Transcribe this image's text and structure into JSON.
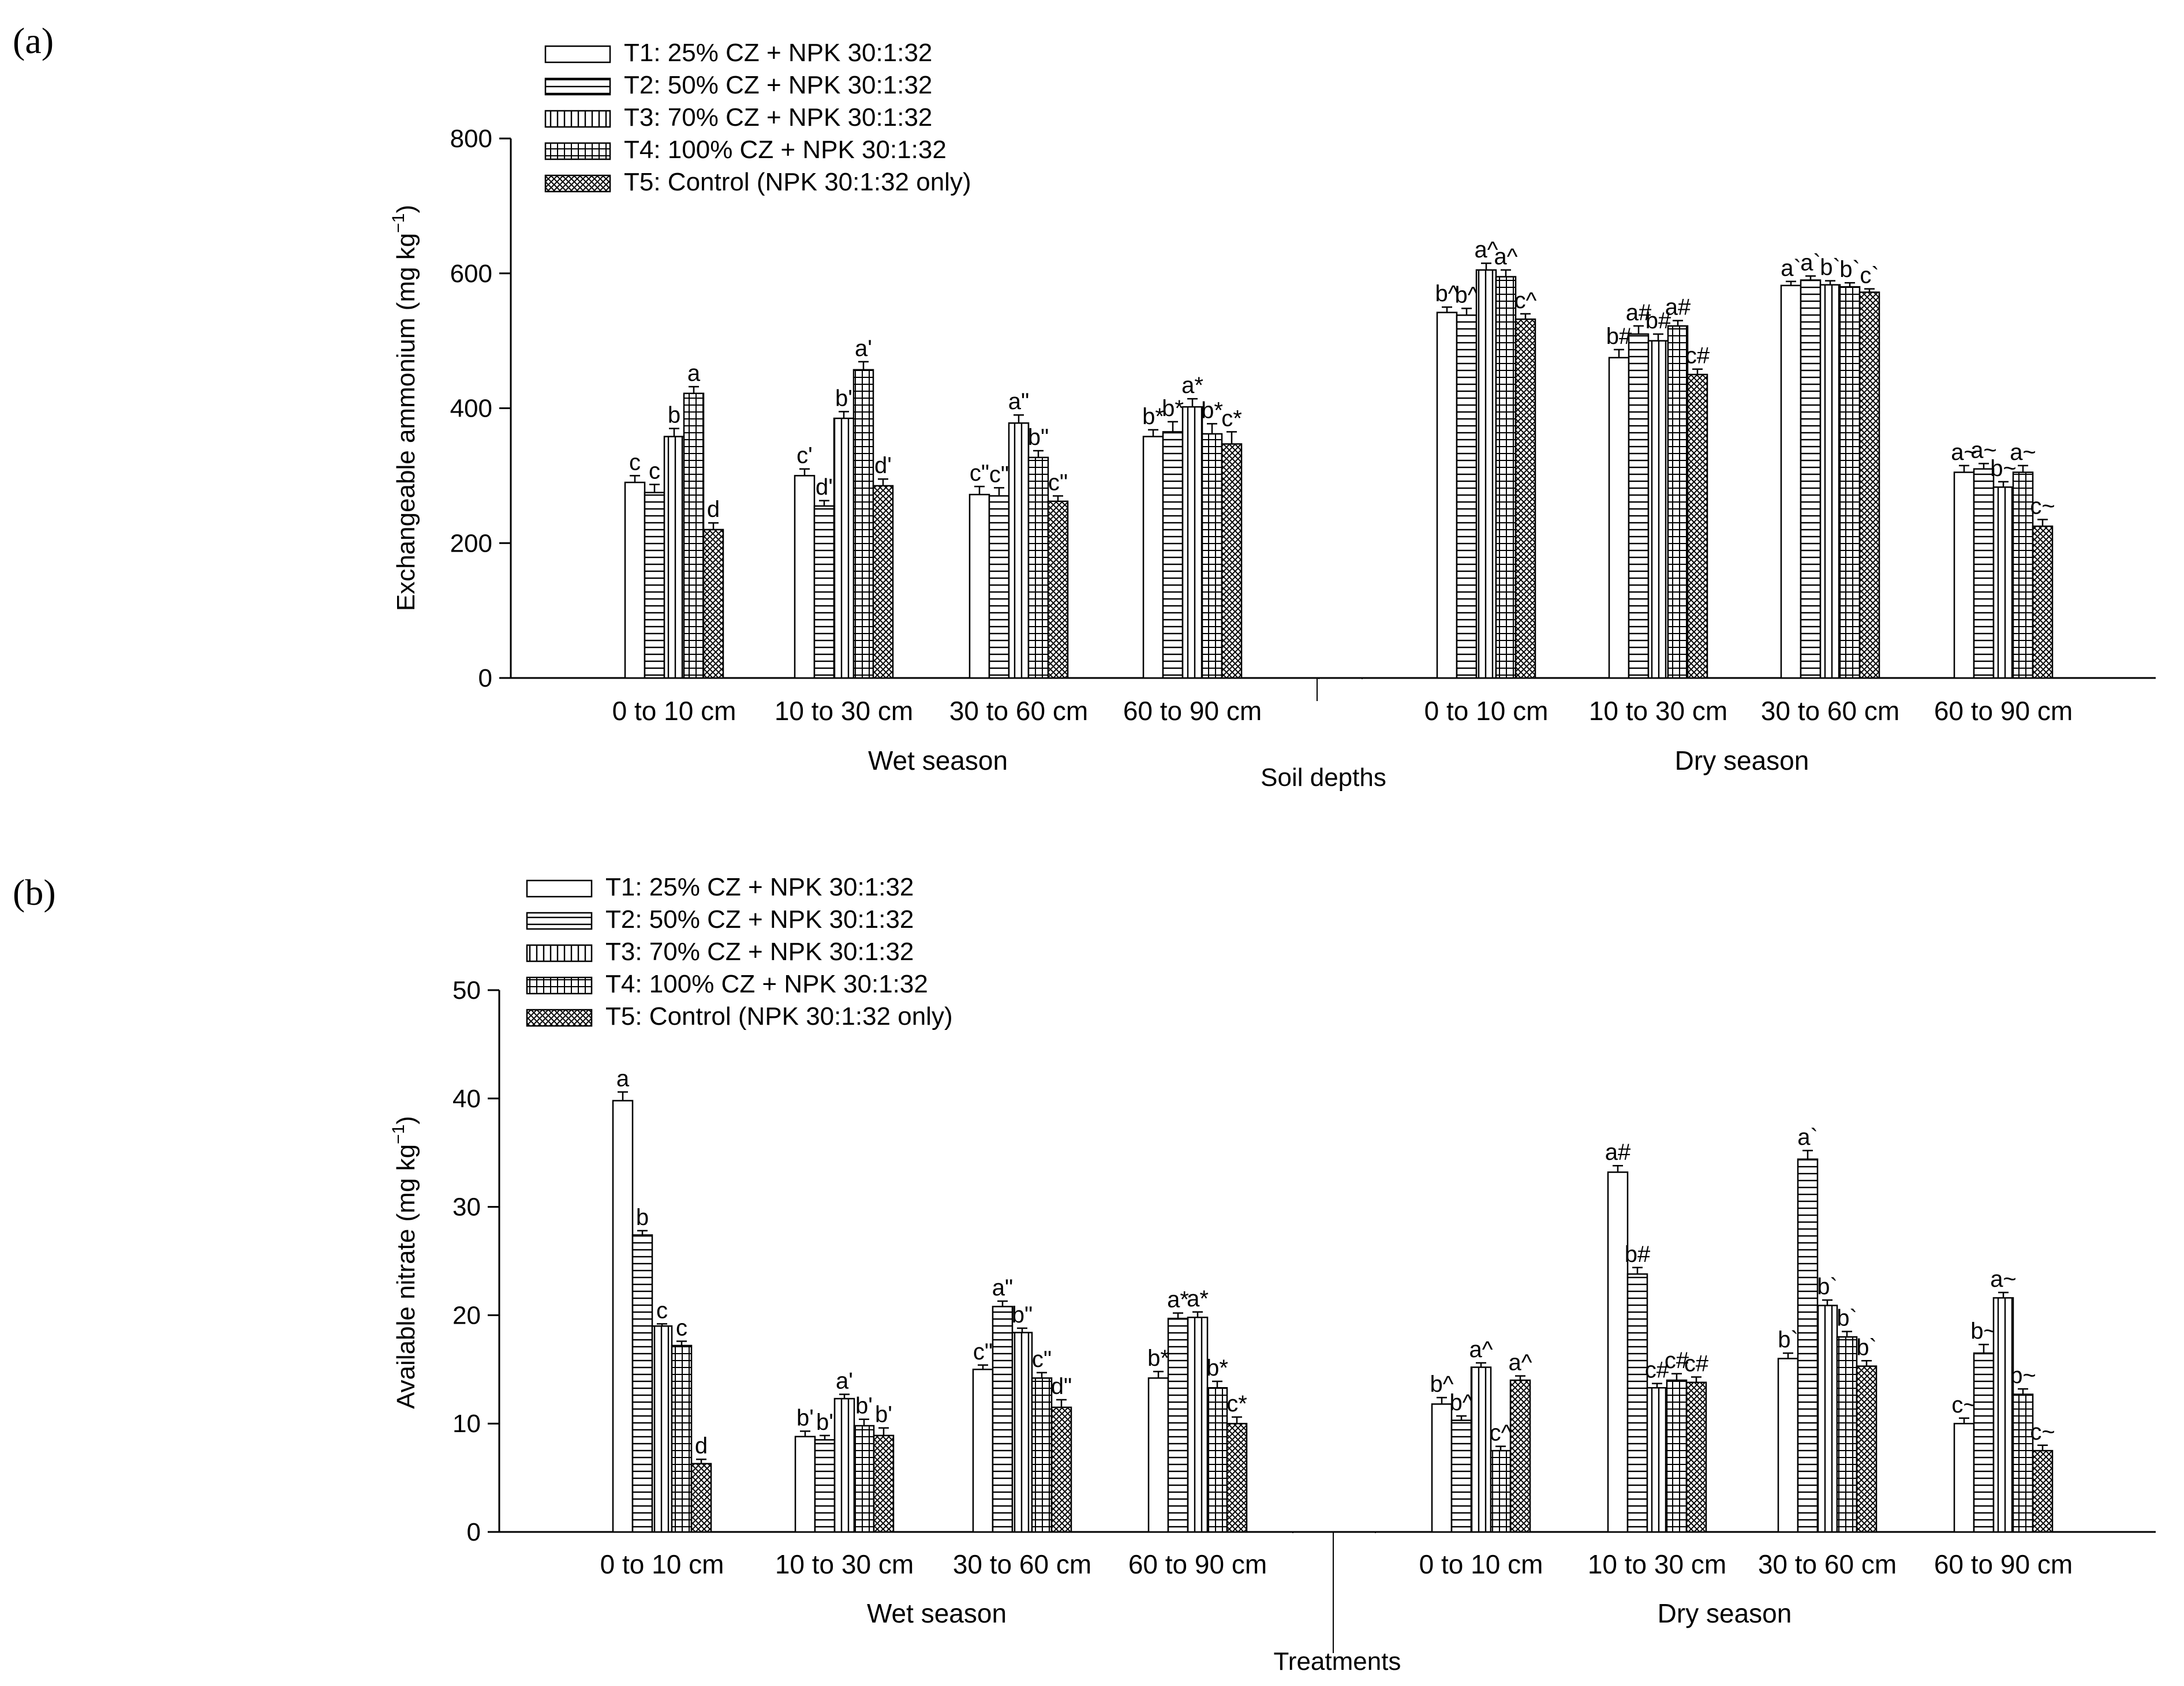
{
  "treatments": [
    {
      "id": "T1",
      "label": "T1: 25% CZ  +  NPK 30:1:32",
      "pattern": "none"
    },
    {
      "id": "T2",
      "label": "T2: 50% CZ  +  NPK 30:1:32",
      "pattern": "hlines"
    },
    {
      "id": "T3",
      "label": "T3: 70% CZ  +  NPK 30:1:32",
      "pattern": "vlines"
    },
    {
      "id": "T4",
      "label": "T4: 100% CZ  +  NPK 30:1:32",
      "pattern": "grid"
    },
    {
      "id": "T5",
      "label": "T5: Control (NPK 30:1:32 only)",
      "pattern": "cross"
    }
  ],
  "chart_data": [
    {
      "panel": "(a)",
      "type": "bar",
      "ylabel": "Exchangeable ammonium (mg kg",
      "ylabel_sup": "−1",
      "ylabel_end": ")",
      "xlabel": "Soil depths",
      "ylim": [
        0,
        800
      ],
      "yticks": [
        "0",
        "200",
        "400",
        "600",
        "800"
      ],
      "ytick_values": [
        0,
        200,
        400,
        600,
        800
      ],
      "seasons": [
        "Wet season",
        "Dry season"
      ],
      "categories": [
        "0 to 10 cm",
        "10 to 30 cm",
        "30 to 60 cm",
        "60 to 90 cm",
        "0 to 10 cm",
        "10 to 30 cm",
        "30 to 60 cm",
        "60 to 90 cm"
      ],
      "series": [
        {
          "name": "T1",
          "values": [
            290,
            300,
            272,
            358,
            542,
            475,
            582,
            305
          ],
          "errors": [
            10,
            10,
            12,
            10,
            8,
            12,
            6,
            10
          ]
        },
        {
          "name": "T2",
          "values": [
            275,
            255,
            270,
            365,
            538,
            510,
            590,
            310
          ],
          "errors": [
            12,
            8,
            12,
            15,
            10,
            12,
            6,
            8
          ]
        },
        {
          "name": "T3",
          "values": [
            358,
            385,
            378,
            402,
            605,
            500,
            583,
            283
          ],
          "errors": [
            12,
            10,
            12,
            12,
            10,
            10,
            6,
            8
          ]
        },
        {
          "name": "T4",
          "values": [
            422,
            457,
            327,
            362,
            595,
            522,
            580,
            305
          ],
          "errors": [
            10,
            12,
            10,
            15,
            10,
            8,
            6,
            10
          ]
        },
        {
          "name": "T5",
          "values": [
            220,
            285,
            262,
            347,
            532,
            450,
            572,
            225
          ],
          "errors": [
            10,
            10,
            8,
            18,
            8,
            8,
            5,
            10
          ]
        }
      ],
      "sig_letters": [
        [
          "c",
          "c'",
          "c\"",
          "b*",
          "b^",
          "b#",
          "a`",
          "a~"
        ],
        [
          "c",
          "d'",
          "c\"",
          "b*",
          "b^",
          "a#",
          "a`",
          "a~"
        ],
        [
          "b",
          "b'",
          "a\"",
          "a*",
          "a^",
          "b#",
          "b`",
          "b~"
        ],
        [
          "a",
          "a'",
          "b\"",
          "b*",
          "a^",
          "a#",
          "b`",
          "a~"
        ],
        [
          "d",
          "d'",
          "c\"",
          "c*",
          "c^",
          "c#",
          "c`",
          "c~"
        ]
      ]
    },
    {
      "panel": "(b)",
      "type": "bar",
      "ylabel": "Available nitrate (mg kg",
      "ylabel_sup": "−1",
      "ylabel_end": ")",
      "xlabel": "Treatments",
      "ylim": [
        0,
        50
      ],
      "yticks": [
        "0",
        "10",
        "20",
        "30",
        "40",
        "50"
      ],
      "ytick_values": [
        0,
        10,
        20,
        30,
        40,
        50
      ],
      "seasons": [
        "Wet season",
        "Dry season"
      ],
      "categories": [
        "0 to 10 cm",
        "10 to 30 cm",
        "30 to 60 cm",
        "60 to 90 cm",
        "0 to 10 cm",
        "10 to 30 cm",
        "30 to 60 cm",
        "60 to 90 cm"
      ],
      "series": [
        {
          "name": "T1",
          "values": [
            39.8,
            8.8,
            15.0,
            14.2,
            11.8,
            33.2,
            16.0,
            10.0
          ],
          "errors": [
            0.8,
            0.5,
            0.4,
            0.6,
            0.6,
            0.6,
            0.5,
            0.5
          ]
        },
        {
          "name": "T2",
          "values": [
            27.4,
            8.5,
            20.8,
            19.7,
            10.3,
            23.8,
            34.4,
            16.5
          ],
          "errors": [
            0.4,
            0.4,
            0.5,
            0.5,
            0.4,
            0.6,
            0.8,
            0.8
          ]
        },
        {
          "name": "T3",
          "values": [
            19.0,
            12.3,
            18.4,
            19.8,
            15.2,
            13.3,
            20.9,
            21.6
          ],
          "errors": [
            0.2,
            0.4,
            0.4,
            0.5,
            0.4,
            0.4,
            0.5,
            0.5
          ]
        },
        {
          "name": "T4",
          "values": [
            17.2,
            9.8,
            14.2,
            13.3,
            7.5,
            14.0,
            18.0,
            12.7
          ],
          "errors": [
            0.4,
            0.6,
            0.5,
            0.6,
            0.4,
            0.6,
            0.5,
            0.5
          ]
        },
        {
          "name": "T5",
          "values": [
            6.3,
            8.9,
            11.5,
            10.0,
            14.0,
            13.8,
            15.3,
            7.5
          ],
          "errors": [
            0.4,
            0.7,
            0.7,
            0.6,
            0.4,
            0.5,
            0.5,
            0.5
          ]
        }
      ],
      "sig_letters": [
        [
          "a",
          "b'",
          "c\"",
          "b*",
          "b^",
          "a#",
          "b`",
          "c~"
        ],
        [
          "b",
          "b'",
          "a\"",
          "a*",
          "b^",
          "b#",
          "a`",
          "b~"
        ],
        [
          "c",
          "a'",
          "b\"",
          "a*",
          "a^",
          "c#",
          "b`",
          "a~"
        ],
        [
          "c",
          "b'",
          "c\"",
          "b*",
          "c^",
          "c#",
          "b`",
          "b~"
        ],
        [
          "d",
          "b'",
          "d\"",
          "c*",
          "a^",
          "c#",
          "b`",
          "c~"
        ]
      ]
    }
  ]
}
